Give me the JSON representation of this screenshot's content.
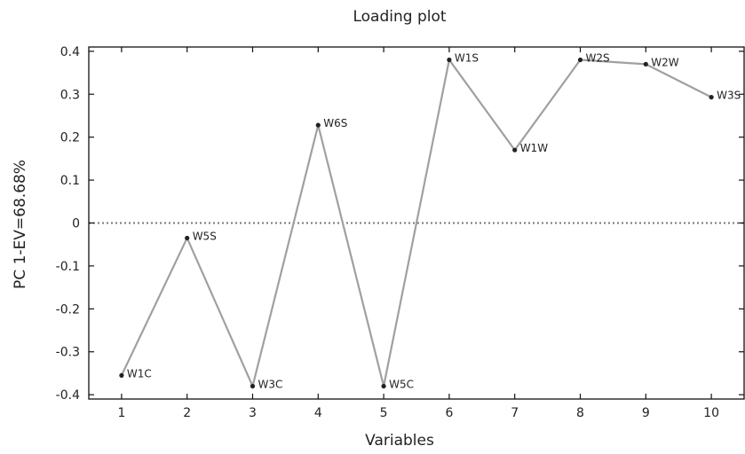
{
  "chart_data": {
    "type": "line",
    "title": "Loading plot",
    "xlabel": "Variables",
    "ylabel": "PC 1-EV=68.68%",
    "x": [
      1,
      2,
      3,
      4,
      5,
      6,
      7,
      8,
      9,
      10
    ],
    "values": [
      -0.355,
      -0.035,
      -0.38,
      0.228,
      -0.38,
      0.38,
      0.17,
      0.38,
      0.37,
      0.293
    ],
    "point_labels": [
      "W1C",
      "W5S",
      "W3C",
      "W6S",
      "W5C",
      "W1S",
      "W1W",
      "W2S",
      "W2W",
      "W3S"
    ],
    "xlim": [
      0.5,
      10.5
    ],
    "ylim": [
      -0.41,
      0.41
    ],
    "x_ticks": [
      1,
      2,
      3,
      4,
      5,
      6,
      7,
      8,
      9,
      10
    ],
    "x_tick_labels": [
      "1",
      "2",
      "3",
      "4",
      "5",
      "6",
      "7",
      "8",
      "9",
      "10"
    ],
    "y_ticks": [
      -0.4,
      -0.3,
      -0.2,
      -0.1,
      0,
      0.1,
      0.2,
      0.3,
      0.4
    ],
    "y_tick_labels": [
      "-0.4",
      "-0.3",
      "-0.2",
      "-0.1",
      "0",
      "0.1",
      "0.2",
      "0.3",
      "0.4"
    ],
    "reference_line": 0,
    "grid": false,
    "line_color": "#a0a0a0",
    "point_color": "#222222",
    "reference_line_color": "#777777"
  }
}
